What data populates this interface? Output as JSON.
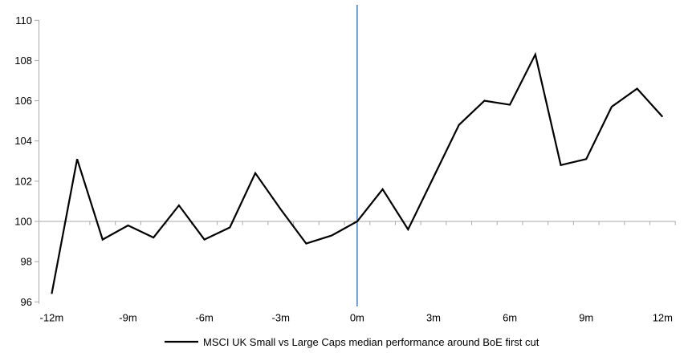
{
  "chart_data": {
    "type": "line",
    "title": "",
    "x_unit": "m",
    "x": [
      -12,
      -11,
      -10,
      -9,
      -8,
      -7,
      -6,
      -5,
      -4,
      -3,
      -2,
      -1,
      0,
      1,
      2,
      3,
      4,
      5,
      6,
      7,
      8,
      9,
      10,
      11,
      12
    ],
    "series": [
      {
        "name": "MSCI UK Small vs Large Caps median performance around BoE first cut",
        "values": [
          96.4,
          103.1,
          99.1,
          99.8,
          99.2,
          100.8,
          99.1,
          99.7,
          102.4,
          100.6,
          98.9,
          99.3,
          100.0,
          101.6,
          99.6,
          102.2,
          104.8,
          106.0,
          105.8,
          108.3,
          102.8,
          103.1,
          105.7,
          106.6,
          105.2
        ]
      }
    ],
    "x_ticks": {
      "labels": [
        "-12m",
        "-9m",
        "-6m",
        "-3m",
        "0m",
        "3m",
        "6m",
        "9m",
        "12m"
      ],
      "positions": [
        -12,
        -9,
        -6,
        -3,
        0,
        3,
        6,
        9,
        12
      ]
    },
    "y_ticks": [
      96,
      98,
      100,
      102,
      104,
      106,
      108,
      110
    ],
    "ylim": [
      96,
      110
    ],
    "xlim": [
      -12.5,
      12.5
    ],
    "baseline_y": 100,
    "event_line_x": 0,
    "grid": "single horizontal line at 100; vertical event line at 0m",
    "legend": {
      "label": "MSCI UK Small vs Large Caps median performance around BoE first cut",
      "position": "bottom-center",
      "marker": "line"
    },
    "colors": {
      "series": "#000000",
      "event_line": "#4986c6",
      "axis": "#a8a8a8",
      "text": "#000000",
      "background": "#ffffff"
    }
  }
}
